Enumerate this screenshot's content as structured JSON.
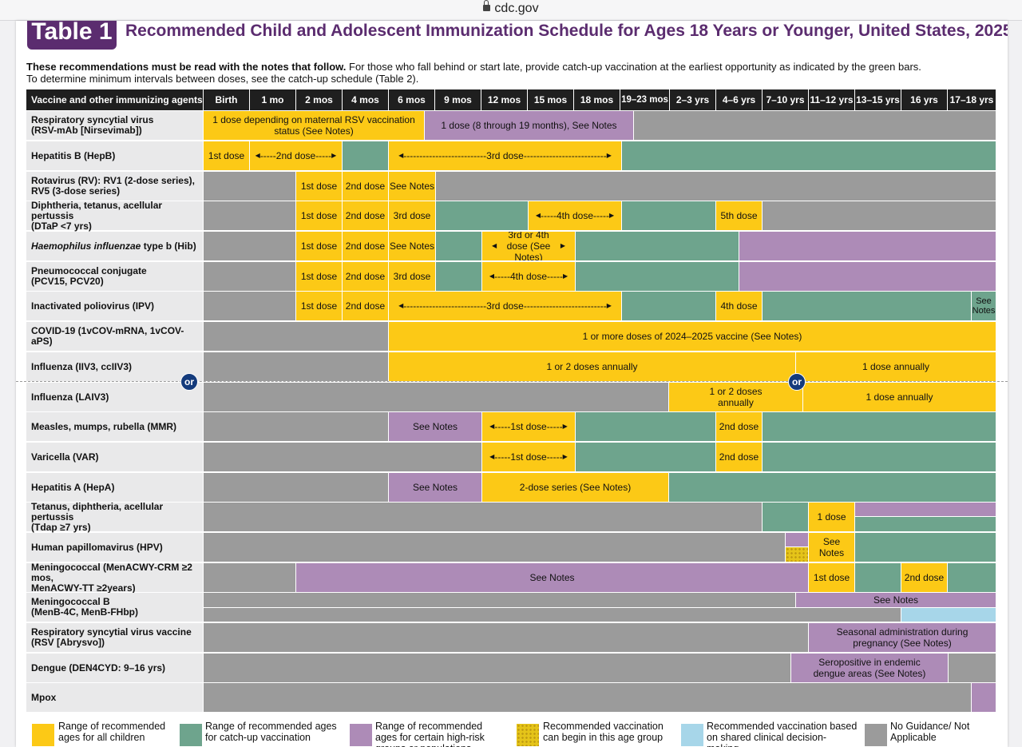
{
  "browser": {
    "url": "cdc.gov"
  },
  "badge": "Table 1",
  "title": "Recommended Child and Adolescent Immunization Schedule for Ages 18 Years or Younger, United States, 2025",
  "intro": {
    "bold": "These recommendations must be read with the notes that follow.",
    "rest": " For those who fall behind or start late, provide catch-up vaccination at the earliest opportunity as indicated by the green bars.",
    "line2": "To determine minimum intervals between doses, see the catch-up schedule (Table 2)."
  },
  "header": {
    "vaccine_col": "Vaccine and other immunizing agents",
    "ages": [
      "Birth",
      "1 mo",
      "2 mos",
      "4 mos",
      "6 mos",
      "9 mos",
      "12 mos",
      "15 mos",
      "18 mos",
      "19–23 mos",
      "2–3 yrs",
      "4–6 yrs",
      "7–10 yrs",
      "11–12 yrs",
      "13–15 yrs",
      "16 yrs",
      "17–18 yrs"
    ]
  },
  "vaccines": [
    {
      "line1": "Respiratory syncytial virus",
      "line2": "(RSV-mAb [Nirsevimab])"
    },
    {
      "line1": "Hepatitis B (HepB)"
    },
    {
      "line1": "Rotavirus (RV): RV1 (2-dose series),",
      "line2": "RV5 (3-dose series)"
    },
    {
      "line1": "Diphtheria, tetanus, acellular pertussis",
      "line2": "(DTaP <7 yrs)"
    },
    {
      "italic": "Haemophilus influenzae",
      "line1": " type b (Hib)"
    },
    {
      "line1": "Pneumococcal conjugate",
      "line2": "(PCV15, PCV20)"
    },
    {
      "line1": "Inactivated poliovirus (IPV)"
    },
    {
      "line1": "COVID-19 (1vCOV-mRNA, 1vCOV-aPS)"
    },
    {
      "line1": "Influenza (IIV3, ccIIV3)"
    },
    {
      "line1": "Influenza (LAIV3)"
    },
    {
      "line1": "Measles, mumps, rubella (MMR)"
    },
    {
      "line1": "Varicella (VAR)"
    },
    {
      "line1": "Hepatitis A (HepA)"
    },
    {
      "line1": "Tetanus, diphtheria, acellular pertussis",
      "line2": "(Tdap ≥7 yrs)"
    },
    {
      "line1": "Human papillomavirus (HPV)"
    },
    {
      "line1": "Meningococcal (MenACWY-CRM ≥2 mos,",
      "line2": "MenACWY-TT ≥2years)"
    },
    {
      "line1": "Meningococcal B",
      "line2": "(MenB-4C, MenB-FHbp)"
    },
    {
      "line1": "Respiratory syncytial virus vaccine",
      "line2": "(RSV [Abrysvo])"
    },
    {
      "line1": "Dengue (DEN4CYD: 9–16 yrs)"
    },
    {
      "line1": "Mpox"
    }
  ],
  "bars": {
    "rsv_maternal": "1 dose depending on maternal RSV vaccination status (See Notes)",
    "rsv_8_19": "1 dose (8 through 19 months), See Notes",
    "dose1": "1st dose",
    "dose2": "2nd dose",
    "dose3": "3rd dose",
    "dose4": "4th dose",
    "dose5": "5th dose",
    "see_notes": "See Notes",
    "hib_34": "3rd or 4th dose (See Notes)",
    "covid": "1 or more doses of 2024–2025 vaccine (See Notes)",
    "flu_1or2": "1 or 2 doses annually",
    "flu_1": "1 dose annually",
    "laiv_1or2": "1 or 2 doses annually",
    "hepa_series": "2-dose series (See Notes)",
    "1_dose": "1 dose",
    "rsv_preg": "Seasonal administration during pregnancy (See Notes)",
    "dengue": "Seropositive in endemic dengue areas (See Notes)",
    "or": "or"
  },
  "legend": [
    {
      "text": "Range of recommended ages for all children",
      "color": "#fcc916"
    },
    {
      "text": "Range of recommended ages for catch-up vaccination",
      "color": "#6ea48d"
    },
    {
      "text": "Range of recommended ages for certain high-risk groups or populations",
      "color": "#ad8bb7"
    },
    {
      "text": "Recommended vaccination can begin in this age group",
      "color": "#e5c419"
    },
    {
      "text": "Recommended vaccination based on shared clinical decision-making",
      "color": "#a7d6e9"
    },
    {
      "text": "No Guidance/ Not Applicable",
      "color": "#9b9b9b"
    }
  ]
}
